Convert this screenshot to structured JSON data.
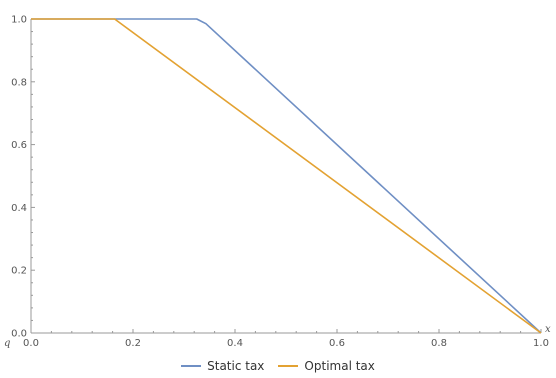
{
  "chart_data": {
    "type": "line",
    "title": "",
    "xlabel": "x",
    "ylabel": "q",
    "xlim": [
      0,
      1
    ],
    "ylim": [
      0,
      1
    ],
    "x_ticks": [
      "0.0",
      "0.2",
      "0.4",
      "0.6",
      "0.8",
      "1.0"
    ],
    "y_ticks": [
      "0.0",
      "0.2",
      "0.4",
      "0.6",
      "0.8",
      "1.0"
    ],
    "grid": false,
    "legend_position": "bottom-center",
    "series": [
      {
        "name": "Static tax",
        "color": "#6f8fc4",
        "x": [
          0.0,
          0.325,
          0.343,
          1.0
        ],
        "y": [
          1.0,
          1.0,
          0.985,
          0.0
        ]
      },
      {
        "name": "Optimal tax",
        "color": "#e3a232",
        "x": [
          0.0,
          0.164,
          1.0
        ],
        "y": [
          1.0,
          1.0,
          0.0
        ]
      }
    ]
  }
}
